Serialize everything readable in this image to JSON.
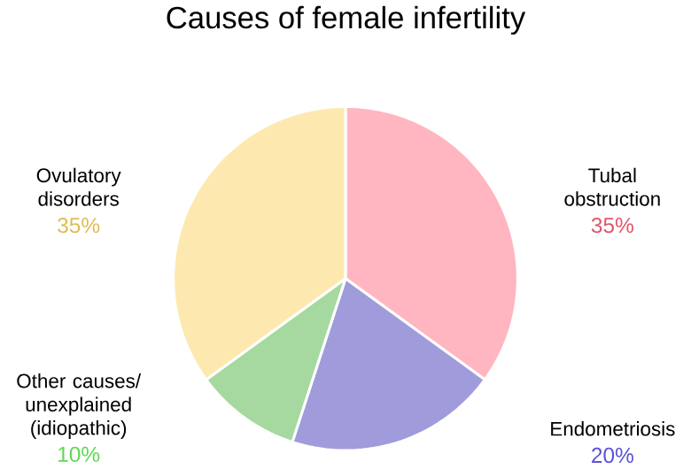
{
  "chart_data": {
    "type": "pie",
    "title": "Causes of female infertility",
    "categories": [
      "Tubal obstruction",
      "Endometriosis",
      "Other causes/ unexplained (idiopathic)",
      "Ovulatory disorders"
    ],
    "values": [
      35,
      20,
      10,
      35
    ],
    "value_labels": [
      "35%",
      "20%",
      "10%",
      "35%"
    ],
    "colors": [
      "#ffb6c1",
      "#a09cdb",
      "#a5d9a0",
      "#fde9b0"
    ]
  }
}
